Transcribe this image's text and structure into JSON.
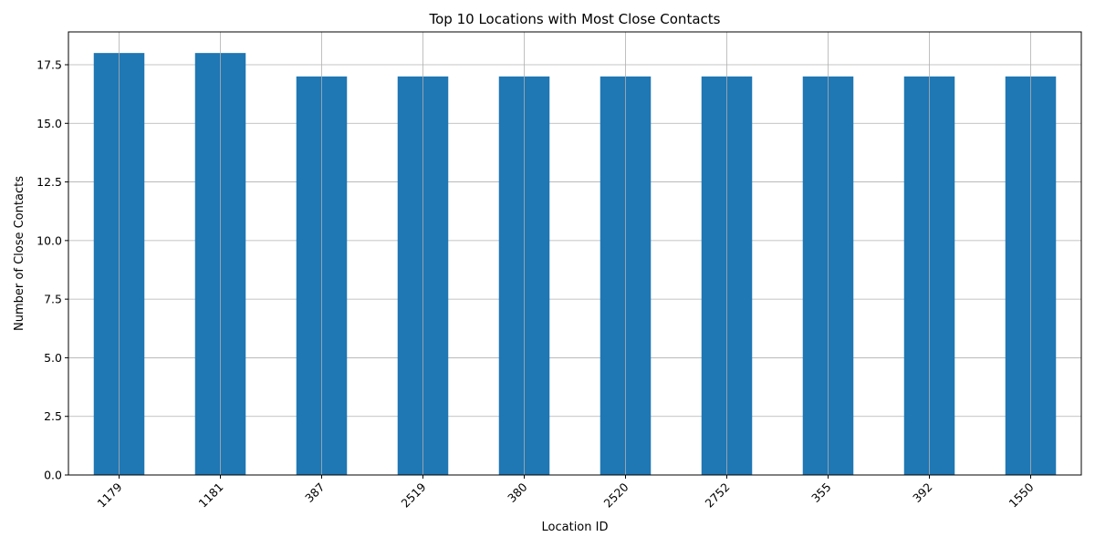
{
  "chart_data": {
    "type": "bar",
    "title": "Top 10 Locations with Most Close Contacts",
    "xlabel": "Location ID",
    "ylabel": "Number of Close Contacts",
    "categories": [
      "1179",
      "1181",
      "387",
      "2519",
      "380",
      "2520",
      "2752",
      "355",
      "392",
      "1550"
    ],
    "values": [
      18,
      18,
      17,
      17,
      17,
      17,
      17,
      17,
      17,
      17
    ],
    "ylim": [
      0,
      18.9
    ],
    "yticks": [
      0.0,
      2.5,
      5.0,
      7.5,
      10.0,
      12.5,
      15.0,
      17.5
    ],
    "ytick_labels": [
      "0.0",
      "2.5",
      "5.0",
      "7.5",
      "10.0",
      "12.5",
      "15.0",
      "17.5"
    ],
    "grid": true,
    "x_tick_rotation": 45,
    "bar_color": "#1f77b4"
  }
}
